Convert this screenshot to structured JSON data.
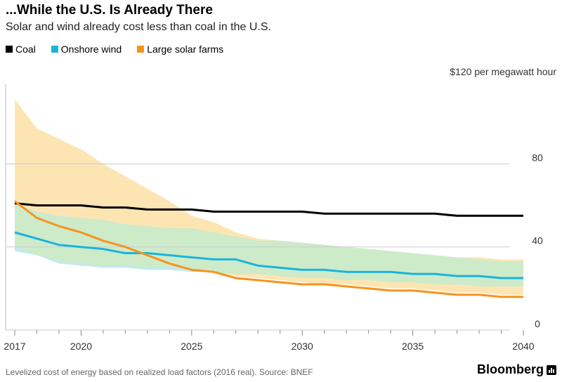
{
  "header": {
    "title": "...While the U.S. Is Already There",
    "subtitle": "Solar and wind already cost less than coal in the U.S."
  },
  "footer": {
    "note": "Levelized cost of energy based on realized load factors (2016 real). Source: BNEF",
    "brand": "Bloomberg"
  },
  "colors": {
    "coal": "#000000",
    "wind": "#1ab4dc",
    "solar": "#f7931e",
    "wind_band": "#bfeaf5",
    "solar_band": "#fde5b3",
    "overlap_band": "#cdebc9",
    "grid": "#cccccc"
  },
  "chart_data": {
    "type": "line",
    "title": "...While the U.S. Is Already There",
    "subtitle": "Solar and wind already cost less than coal in the U.S.",
    "ylabel": "$120 per megawatt hour",
    "xlabel": "",
    "ylim": [
      0,
      120
    ],
    "xlim": [
      2017,
      2040
    ],
    "yticks": [
      0,
      40,
      80
    ],
    "ytick_labels": [
      "0",
      "40",
      "80"
    ],
    "unit_label": "$120 per megawatt hour",
    "xticks": [
      2017,
      2020,
      2025,
      2030,
      2035,
      2040
    ],
    "xtick_labels": [
      "2017",
      "2020",
      "2025",
      "2030",
      "2035",
      "2040"
    ],
    "grid": true,
    "legend_position": "top-left",
    "series": [
      {
        "name": "Coal",
        "key": "coal",
        "x": [
          2017,
          2018,
          2019,
          2020,
          2021,
          2022,
          2023,
          2024,
          2025,
          2026,
          2027,
          2028,
          2029,
          2030,
          2031,
          2032,
          2033,
          2034,
          2035,
          2036,
          2037,
          2038,
          2039,
          2040
        ],
        "values": [
          61,
          60,
          60,
          60,
          59,
          59,
          58,
          58,
          58,
          57,
          57,
          57,
          57,
          57,
          56,
          56,
          56,
          56,
          56,
          56,
          55,
          55,
          55,
          55
        ]
      },
      {
        "name": "Onshore wind",
        "key": "wind",
        "x": [
          2017,
          2018,
          2019,
          2020,
          2021,
          2022,
          2023,
          2024,
          2025,
          2026,
          2027,
          2028,
          2029,
          2030,
          2031,
          2032,
          2033,
          2034,
          2035,
          2036,
          2037,
          2038,
          2039,
          2040
        ],
        "values": [
          47,
          44,
          41,
          40,
          39,
          37,
          37,
          36,
          35,
          34,
          34,
          31,
          30,
          29,
          29,
          28,
          28,
          28,
          27,
          27,
          26,
          26,
          25,
          25
        ],
        "band_low": [
          38,
          36,
          32,
          31,
          30,
          30,
          29,
          29,
          28,
          28,
          27,
          27,
          26,
          25,
          25,
          24,
          24,
          23,
          23,
          22,
          22,
          21,
          21,
          21
        ],
        "band_high": [
          61,
          57,
          55,
          54,
          53,
          51,
          50,
          49,
          49,
          47,
          45,
          43,
          43,
          42,
          41,
          40,
          39,
          38,
          37,
          36,
          35,
          34,
          33,
          33
        ]
      },
      {
        "name": "Large solar farms",
        "key": "solar",
        "x": [
          2017,
          2018,
          2019,
          2020,
          2021,
          2022,
          2023,
          2024,
          2025,
          2026,
          2027,
          2028,
          2029,
          2030,
          2031,
          2032,
          2033,
          2034,
          2035,
          2036,
          2037,
          2038,
          2039,
          2040
        ],
        "values": [
          62,
          54,
          50,
          47,
          43,
          40,
          36,
          32,
          29,
          28,
          25,
          24,
          23,
          22,
          22,
          21,
          20,
          19,
          19,
          18,
          17,
          17,
          16,
          16
        ],
        "band_low": [
          40,
          36,
          33,
          32,
          31,
          31,
          30,
          30,
          29,
          28,
          26,
          25,
          24,
          23,
          22,
          22,
          21,
          20,
          20,
          19,
          18,
          18,
          17,
          17
        ],
        "band_high": [
          111,
          97,
          92,
          87,
          80,
          74,
          68,
          62,
          55,
          52,
          47,
          44,
          43,
          42,
          41,
          40,
          39,
          38,
          37,
          36,
          35,
          35,
          34,
          34
        ]
      }
    ]
  }
}
